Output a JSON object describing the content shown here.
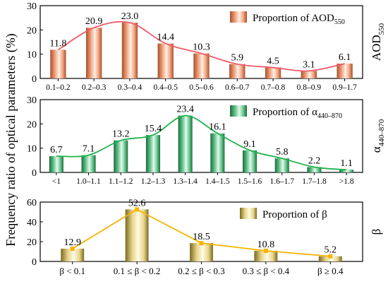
{
  "figure": {
    "y_axis_label": "Frequency ratio of optical parameters (%)"
  },
  "chart_data": [
    {
      "type": "bar",
      "side_label": "AOD",
      "side_label_sub": "550",
      "legend_label": "Proportion of AOD",
      "legend_label_sub": "550",
      "legend_position": "top-right",
      "categories": [
        "0.1–0.2",
        "0.2–0.3",
        "0.3–0.4",
        "0.4–0.5",
        "0.5–0.6",
        "0.6–0.7",
        "0.7–0.8",
        "0.8–0.9",
        "0.9–1.7"
      ],
      "values": [
        11.8,
        20.9,
        23.0,
        14.4,
        10.3,
        5.9,
        4.5,
        3.1,
        6.1
      ],
      "value_labels": [
        "11.8",
        "20.9",
        "23.0",
        "14.4",
        "10.3",
        "5.9",
        "4.5",
        "3.1",
        "6.1"
      ],
      "ylim": [
        0,
        30
      ],
      "yticks": [
        0,
        10,
        20,
        30
      ],
      "line_smooth": true,
      "bar_colors": [
        "#a8502c",
        "#f0a07a",
        "#fff0e8"
      ],
      "line_color": "#f05a6a"
    },
    {
      "type": "bar",
      "side_label": "α",
      "side_label_sub": "440–870",
      "legend_label": "Proportion of α",
      "legend_label_sub": "440–870",
      "legend_position": "top-right",
      "categories": [
        "<1",
        "1.0–1.1",
        "1.1–1.2",
        "1.2–1.3",
        "1.3–1.4",
        "1.4–1.5",
        "1.5–1.6",
        "1.6–1.7",
        "1.7–1.8",
        ">1.8"
      ],
      "values": [
        6.7,
        7.1,
        13.2,
        15.4,
        23.4,
        16.1,
        9.1,
        5.8,
        2.2,
        1.1
      ],
      "value_labels": [
        "6.7",
        "7.1",
        "13.2",
        "15.4",
        "23.4",
        "16.1",
        "9.1",
        "5.8",
        "2.2",
        "1.1"
      ],
      "ylim": [
        0,
        30
      ],
      "yticks": [
        0,
        10,
        20,
        30
      ],
      "line_smooth": true,
      "bar_colors": [
        "#1f6a3c",
        "#5fc489",
        "#e6f7ec"
      ],
      "line_color": "#22b24c"
    },
    {
      "type": "bar",
      "side_label": "β",
      "side_label_sub": "",
      "legend_label": "Proportion of β",
      "legend_label_sub": "",
      "legend_position": "top-right",
      "categories": [
        "β < 0.1",
        "0.1 ≤ β < 0.2",
        "0.2 ≤ β < 0.3",
        "0.3 ≤ β < 0.4",
        "β ≥ 0.4"
      ],
      "values": [
        12.9,
        52.6,
        18.5,
        10.8,
        5.2
      ],
      "value_labels": [
        "12.9",
        "52.6",
        "18.5",
        "10.8",
        "5.2"
      ],
      "ylim": [
        0,
        60
      ],
      "yticks": [
        0,
        20,
        40,
        60
      ],
      "line_smooth": false,
      "bar_colors": [
        "#7a6a1e",
        "#e8d48a",
        "#fffbe6"
      ],
      "line_color": "#f5b400"
    }
  ]
}
